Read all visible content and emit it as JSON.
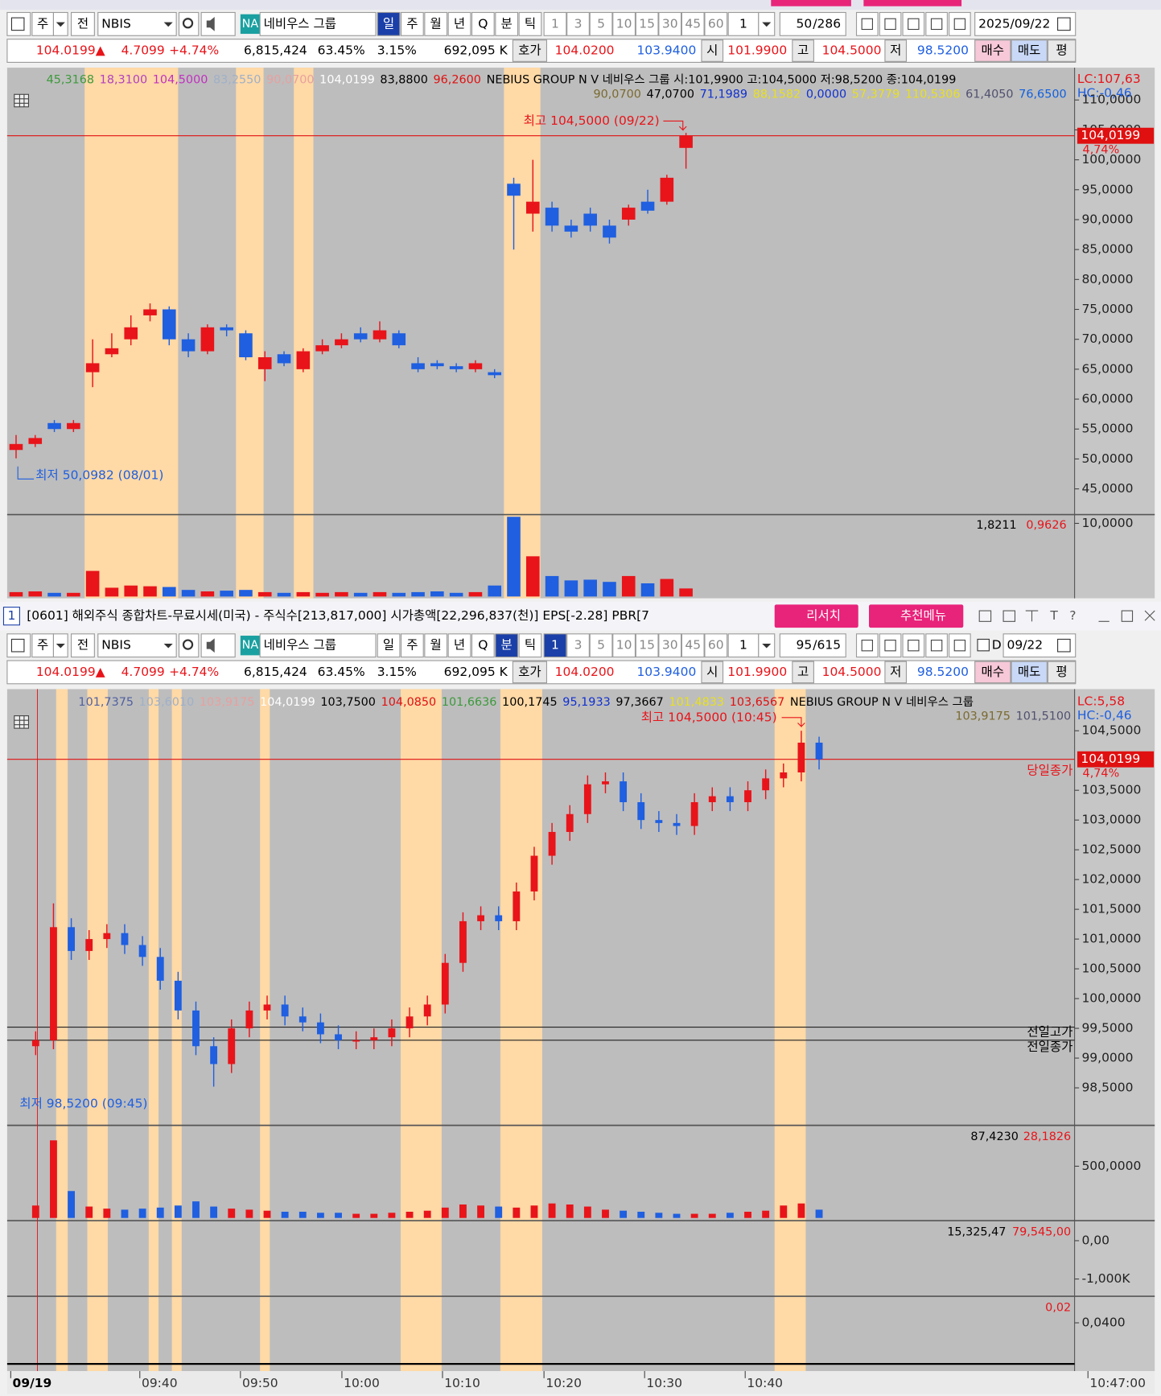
{
  "window": {
    "number": "1",
    "title": "[0601] 해외주식 종합차트-무료시세(미국) - 주식수[213,817,000] 시가총액[22,296,837(천)] EPS[-2.28] PBR[7",
    "buttons": [
      "리서치",
      "추천메뉴"
    ],
    "icons": [
      "T",
      "?"
    ]
  },
  "toolbar": {
    "market": "주",
    "scope": "전",
    "code": "NBIS",
    "badge": "NA",
    "name": "네비우스 그룹",
    "periods": [
      "일",
      "주",
      "월",
      "년",
      "Q",
      "분",
      "틱"
    ],
    "intervals": [
      "1",
      "3",
      "5",
      "10",
      "15",
      "30",
      "45",
      "60"
    ],
    "count": "1"
  },
  "quote": {
    "price": "104.0199▲",
    "change": "4.7099",
    "change_pct": "+4.74%",
    "volume": "6,815,424",
    "ratio": "63.45%",
    "turnover": "3.15%",
    "amount": "692,095 K",
    "ask_label": "호가",
    "ask": "104.0200",
    "bid": "103.9400",
    "open_label": "시",
    "open": "101.9900",
    "high_label": "고",
    "high": "104.5000",
    "low_label": "저",
    "low": "98.5200",
    "buy": "매수",
    "sell": "매도",
    "avg": "평"
  },
  "daily_chart": {
    "view": {
      "active_period": "일",
      "shown": "50",
      "total": "/286",
      "date": "2025/09/22"
    },
    "legend_top": [
      {
        "text": "45,3168",
        "color": "#3c9a3c"
      },
      {
        "text": "18,3100",
        "color": "#b040c0"
      },
      {
        "text": "104,5000",
        "color": "#c030c0"
      },
      {
        "text": "83,2550",
        "color": "#9fb0c8"
      },
      {
        "text": "90,0700",
        "color": "#e8a0a0"
      },
      {
        "text": "104,0199",
        "color": "#ffffff"
      },
      {
        "text": "83,8800",
        "color": "#000000"
      },
      {
        "text": "96,2600",
        "color": "#e01010"
      },
      {
        "text": "NEBIUS GROUP N V  네비우스 그룹 시:101,9900 고:104,5000 저:98,5200 종:104,0199",
        "color": "#000000"
      }
    ],
    "legend_second": [
      {
        "text": "90,0700",
        "color": "#7a6a30"
      },
      {
        "text": "47,0700",
        "color": "#000000"
      },
      {
        "text": "71,1989",
        "color": "#1030d0"
      },
      {
        "text": "88,1582",
        "color": "#e8e020"
      },
      {
        "text": "0,0000",
        "color": "#1030d0"
      },
      {
        "text": "57,3779",
        "color": "#e8e020"
      },
      {
        "text": "110,5306",
        "color": "#e8e020"
      },
      {
        "text": "61,4050",
        "color": "#505070"
      },
      {
        "text": "76,6500",
        "color": "#1060e0"
      }
    ],
    "lc": "LC:107,63",
    "hc": "HC:-0,46",
    "high_note": "최고 104,5000 (09/22)",
    "low_note": "최저 50,0982 (08/01)",
    "last": 104.0199,
    "last_label": "104,0199",
    "last_change": "4,74%",
    "ylim": [
      40.7,
      115.4
    ],
    "yticks": [
      {
        "value": 110,
        "label": "110,0000"
      },
      {
        "value": 105,
        "label": "105,0000"
      },
      {
        "value": 100,
        "label": "100,0000"
      },
      {
        "value": 95,
        "label": "95,0000"
      },
      {
        "value": 90,
        "label": "90,0000"
      },
      {
        "value": 85,
        "label": "85,0000"
      },
      {
        "value": 80,
        "label": "80,0000"
      },
      {
        "value": 75,
        "label": "75,0000"
      },
      {
        "value": 70,
        "label": "70,0000"
      },
      {
        "value": 65,
        "label": "65,0000"
      },
      {
        "value": 60,
        "label": "60,0000"
      },
      {
        "value": 55,
        "label": "55,0000"
      },
      {
        "value": 50,
        "label": "50,0000"
      },
      {
        "value": 45,
        "label": "45,0000"
      }
    ],
    "candles": {
      "open": [
        51.5,
        52.5,
        56,
        55,
        64.5,
        67.5,
        70,
        74,
        75,
        70,
        68,
        72,
        71,
        65,
        67.5,
        65,
        68,
        69,
        71,
        70,
        71,
        66,
        66,
        65.5,
        65,
        64.5,
        96,
        91,
        92,
        89,
        91,
        89,
        90,
        93,
        93,
        101.99
      ],
      "high": [
        54,
        54,
        56.5,
        56.5,
        70,
        71,
        74,
        76,
        75.5,
        71,
        72.5,
        72.5,
        71.5,
        68,
        68,
        68.5,
        70,
        71,
        72,
        73,
        71.5,
        67,
        66.5,
        66,
        66.5,
        65,
        97,
        100,
        93,
        90,
        92,
        90,
        92.5,
        95,
        97.5,
        104.5
      ],
      "low": [
        50.0982,
        52,
        54.5,
        54.5,
        62,
        67,
        69,
        73,
        69,
        67,
        67.5,
        70.5,
        66.5,
        63,
        65.5,
        64.5,
        67.5,
        68.5,
        69.5,
        69.5,
        68.5,
        64.5,
        65,
        64.5,
        64.5,
        63.5,
        85,
        88,
        88,
        87,
        88,
        86,
        89,
        91,
        92.5,
        98.52
      ],
      "close": [
        52.5,
        53.5,
        55,
        56,
        66,
        68.5,
        72,
        75,
        70,
        68,
        72,
        71.5,
        67,
        67,
        66,
        68,
        69,
        70,
        70,
        71.5,
        69,
        65,
        65.5,
        65,
        66,
        64,
        94,
        93,
        89,
        88,
        89,
        87,
        92,
        91.5,
        97,
        104.0199
      ]
    },
    "volume": {
      "values": [
        0.6,
        0.7,
        0.5,
        0.5,
        3.5,
        1.2,
        1.5,
        1.4,
        1.3,
        0.9,
        0.7,
        0.8,
        0.9,
        0.6,
        0.5,
        0.6,
        0.5,
        0.6,
        0.5,
        0.6,
        0.5,
        0.6,
        0.7,
        0.5,
        0.6,
        1.5,
        10.9,
        5.5,
        2.8,
        2.2,
        2.3,
        2.0,
        2.8,
        1.8,
        2.4,
        1.1
      ],
      "ylim": [
        0,
        11.2
      ],
      "yticks": [
        {
          "value": 10,
          "label": "10,0000"
        }
      ],
      "readout": [
        "1,8211",
        "0,9626"
      ]
    }
  },
  "minute_chart": {
    "view": {
      "active_period": "분",
      "active_interval": "1",
      "shown": "95",
      "total": "/615",
      "check": "D",
      "date": "09/22"
    },
    "legend_top": [
      {
        "text": "101,7375",
        "color": "#5060a0"
      },
      {
        "text": "103,6010",
        "color": "#9fb0c8"
      },
      {
        "text": "103,9175",
        "color": "#e8a0a0"
      },
      {
        "text": "104,0199",
        "color": "#ffffff"
      },
      {
        "text": "103,7500",
        "color": "#000000"
      },
      {
        "text": "104,0850",
        "color": "#e01010"
      },
      {
        "text": "101,6636",
        "color": "#3c9a3c"
      },
      {
        "text": "100,1745",
        "color": "#000000"
      },
      {
        "text": "95,1933",
        "color": "#1030d0"
      },
      {
        "text": "97,3667",
        "color": "#000000"
      },
      {
        "text": "101,4833",
        "color": "#e8e020"
      },
      {
        "text": "103,6567",
        "color": "#e01010"
      },
      {
        "text": "NEBIUS GROUP N V  네비우스 그룹",
        "color": "#000000"
      }
    ],
    "legend_second": [
      {
        "text": "103,9175",
        "color": "#7a6a30"
      },
      {
        "text": "101,5100",
        "color": "#505070"
      }
    ],
    "lc": "LC:5,58",
    "hc": "HC:-0,46",
    "high_note": "최고 104,5000 (10:45)",
    "low_note": "최저 98,5200 (09:45)",
    "last": 104.0199,
    "last_label": "104,0199",
    "last_change": "4,74%",
    "close_note": "당일종가",
    "reference_lines": [
      {
        "label": "전일고가",
        "value": 99.52
      },
      {
        "label": "전일종가",
        "value": 99.3
      }
    ],
    "ylim": [
      97.9,
      105.2
    ],
    "yticks": [
      {
        "value": 104.5,
        "label": "104,5000"
      },
      {
        "value": 103.5,
        "label": "103,5000"
      },
      {
        "value": 103,
        "label": "103,0000"
      },
      {
        "value": 102.5,
        "label": "102,5000"
      },
      {
        "value": 102,
        "label": "102,0000"
      },
      {
        "value": 101.5,
        "label": "101,5000"
      },
      {
        "value": 101,
        "label": "101,0000"
      },
      {
        "value": 100.5,
        "label": "100,5000"
      },
      {
        "value": 100,
        "label": "100,0000"
      },
      {
        "value": 99.5,
        "label": "99,5000"
      },
      {
        "value": 99,
        "label": "99,0000"
      },
      {
        "value": 98.5,
        "label": "98,5000"
      }
    ],
    "candles": {
      "open": [
        99.2,
        99.3,
        101.2,
        100.8,
        101.0,
        101.1,
        100.9,
        100.7,
        100.3,
        99.8,
        99.2,
        98.9,
        99.5,
        99.8,
        99.9,
        99.7,
        99.6,
        99.4,
        99.3,
        99.3,
        99.35,
        99.5,
        99.7,
        99.9,
        100.6,
        101.3,
        101.4,
        101.3,
        101.8,
        102.4,
        102.8,
        103.1,
        103.6,
        103.65,
        103.3,
        103.0,
        102.95,
        102.9,
        103.3,
        103.4,
        103.3,
        103.5,
        103.7,
        103.8,
        104.3
      ],
      "high": [
        99.45,
        101.6,
        101.35,
        101.15,
        101.25,
        101.25,
        101.05,
        100.85,
        100.45,
        99.95,
        99.35,
        99.65,
        99.95,
        100.05,
        100.05,
        99.85,
        99.75,
        99.55,
        99.45,
        99.5,
        99.65,
        99.85,
        100.05,
        100.75,
        101.45,
        101.55,
        101.55,
        101.95,
        102.55,
        102.95,
        103.25,
        103.75,
        103.8,
        103.8,
        103.45,
        103.15,
        103.1,
        103.45,
        103.55,
        103.55,
        103.65,
        103.85,
        103.95,
        104.5,
        104.4
      ],
      "low": [
        99.05,
        99.15,
        100.65,
        100.65,
        100.85,
        100.75,
        100.55,
        100.15,
        99.65,
        99.05,
        98.52,
        98.75,
        99.35,
        99.65,
        99.55,
        99.45,
        99.25,
        99.15,
        99.15,
        99.15,
        99.2,
        99.35,
        99.55,
        99.75,
        100.45,
        101.15,
        101.15,
        101.15,
        101.65,
        102.25,
        102.65,
        102.95,
        103.45,
        103.15,
        102.85,
        102.8,
        102.75,
        102.75,
        103.15,
        103.15,
        103.15,
        103.35,
        103.55,
        103.65,
        103.85
      ],
      "close": [
        99.3,
        101.2,
        100.8,
        101.0,
        101.1,
        100.9,
        100.7,
        100.3,
        99.8,
        99.2,
        98.9,
        99.5,
        99.8,
        99.9,
        99.7,
        99.6,
        99.4,
        99.3,
        99.3,
        99.35,
        99.5,
        99.7,
        99.9,
        100.6,
        101.3,
        101.4,
        101.3,
        101.8,
        102.4,
        102.8,
        103.1,
        103.6,
        103.65,
        103.3,
        103.0,
        102.95,
        102.9,
        103.3,
        103.4,
        103.3,
        103.5,
        103.7,
        103.8,
        104.3,
        104.0199
      ]
    },
    "volume": {
      "values": [
        120,
        750,
        260,
        110,
        90,
        80,
        90,
        100,
        120,
        160,
        110,
        90,
        80,
        70,
        60,
        60,
        50,
        50,
        40,
        40,
        50,
        60,
        70,
        100,
        130,
        120,
        110,
        100,
        120,
        140,
        130,
        110,
        80,
        70,
        60,
        50,
        40,
        40,
        40,
        50,
        60,
        70,
        120,
        140,
        80
      ],
      "ylim": [
        0,
        895
      ],
      "yticks": [
        {
          "value": 500,
          "label": "500,0000"
        }
      ],
      "readout": [
        "87,4230",
        "28,1826"
      ]
    },
    "indicator1": {
      "ylim": [
        -1428,
        524
      ],
      "yticks": [
        {
          "value": 0,
          "label": "0,00"
        },
        {
          "value": -1000,
          "label": "-1,000K"
        }
      ],
      "readout": [
        "15,325,47",
        "79,545,00"
      ]
    },
    "indicator2": {
      "ylim": [
        0,
        0.062
      ],
      "yticks": [
        {
          "value": 0.04,
          "label": "0,0400"
        }
      ],
      "readout": [
        "0,02"
      ]
    },
    "time_axis": [
      "09/19",
      "09:40",
      "09:50",
      "10:00",
      "10:10",
      "10:20",
      "10:30",
      "10:40",
      "10:47:00"
    ]
  }
}
